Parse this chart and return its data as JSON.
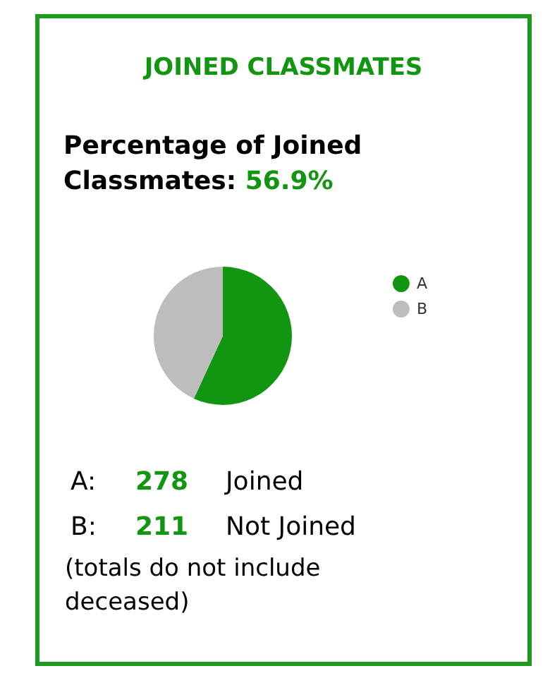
{
  "chart_data": {
    "type": "pie",
    "title": "JOINED CLASSMATES",
    "subtitle": "Percentage of Joined Classmates: 56.9%",
    "categories": [
      "A",
      "B"
    ],
    "values": [
      56.9,
      43.1
    ],
    "colors": [
      "#129612",
      "#bdbdbd"
    ],
    "legend": "top right",
    "annotations": [
      "A:",
      "278",
      "Joined",
      "B:",
      "211",
      "Not Joined",
      "(totals do not include deceased)"
    ]
  }
}
